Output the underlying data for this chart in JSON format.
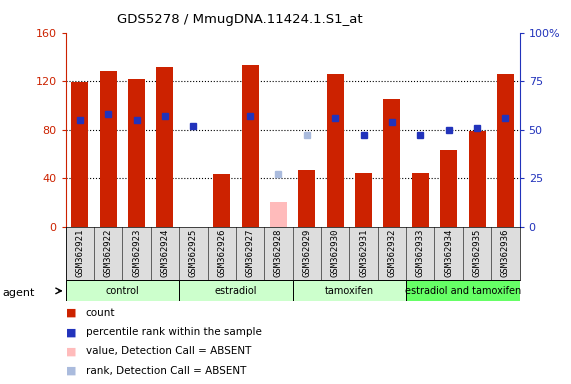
{
  "title": "GDS5278 / MmugDNA.11424.1.S1_at",
  "samples": [
    "GSM362921",
    "GSM362922",
    "GSM362923",
    "GSM362924",
    "GSM362925",
    "GSM362926",
    "GSM362927",
    "GSM362928",
    "GSM362929",
    "GSM362930",
    "GSM362931",
    "GSM362932",
    "GSM362933",
    "GSM362934",
    "GSM362935",
    "GSM362936"
  ],
  "count_values": [
    119,
    128,
    122,
    132,
    null,
    43,
    133,
    null,
    47,
    126,
    44,
    105,
    44,
    63,
    79,
    126
  ],
  "count_absent": [
    null,
    null,
    null,
    null,
    null,
    null,
    null,
    20,
    null,
    null,
    null,
    null,
    null,
    null,
    null,
    null
  ],
  "rank_values": [
    55,
    58,
    55,
    57,
    52,
    null,
    57,
    null,
    null,
    56,
    47,
    54,
    47,
    50,
    51,
    56
  ],
  "rank_absent": [
    null,
    null,
    null,
    null,
    null,
    null,
    null,
    27,
    47,
    null,
    null,
    null,
    null,
    null,
    null,
    null
  ],
  "ylim_left": [
    0,
    160
  ],
  "ylim_right": [
    0,
    100
  ],
  "yticks_left": [
    0,
    40,
    80,
    120,
    160
  ],
  "yticks_right": [
    0,
    25,
    50,
    75,
    100
  ],
  "ytick_labels_right": [
    "0",
    "25",
    "50",
    "75",
    "100%"
  ],
  "bar_color": "#cc2200",
  "bar_absent_color": "#ffbbbb",
  "rank_color": "#2233bb",
  "rank_absent_color": "#aabbdd",
  "group_labels": [
    "control",
    "estradiol",
    "tamoxifen",
    "estradiol and tamoxifen"
  ],
  "group_ranges": [
    [
      0,
      4
    ],
    [
      4,
      8
    ],
    [
      8,
      12
    ],
    [
      12,
      16
    ]
  ],
  "group_colors": [
    "#ccffcc",
    "#ccffcc",
    "#ccffcc",
    "#66ff66"
  ]
}
